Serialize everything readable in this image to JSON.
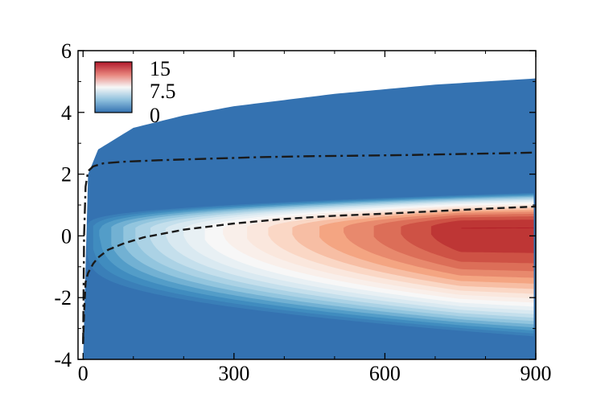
{
  "chart_data": {
    "type": "heatmap",
    "title": "",
    "xlabel": "",
    "ylabel": "",
    "xlim": [
      -10,
      900
    ],
    "ylim": [
      -4,
      6
    ],
    "x_ticks": [
      0,
      300,
      600,
      900
    ],
    "x_tick_labels": [
      "0",
      "300",
      "600",
      "900"
    ],
    "y_ticks": [
      -4,
      -2,
      0,
      2,
      4,
      6
    ],
    "y_tick_labels": [
      "-4",
      "-2",
      "0",
      "2",
      "4",
      "6"
    ],
    "colorbar": {
      "min": 0,
      "max": 15,
      "labels": [
        "15",
        "7.5",
        "0"
      ],
      "colormap": [
        "#ae1a25",
        "#d6604d",
        "#f4a582",
        "#fbe3d6",
        "#f7f7f7",
        "#d1e5f0",
        "#92c5de",
        "#4393c3",
        "#3472b1"
      ]
    },
    "field": {
      "description_values": "contour field over x 0..900, y -4..outer edge",
      "background_value": 0,
      "peak_value": 15,
      "peak_location": [
        750,
        0.2
      ],
      "outer_edge": [
        [
          0,
          -4
        ],
        [
          3,
          0
        ],
        [
          10,
          2
        ],
        [
          30,
          2.8
        ],
        [
          100,
          3.5
        ],
        [
          200,
          3.9
        ],
        [
          300,
          4.2
        ],
        [
          400,
          4.4
        ],
        [
          500,
          4.6
        ],
        [
          600,
          4.75
        ],
        [
          700,
          4.9
        ],
        [
          800,
          5.0
        ],
        [
          900,
          5.1
        ]
      ]
    },
    "series": [
      {
        "name": "dash-dot line",
        "style": "dash-dot",
        "x": [
          0,
          2,
          5,
          10,
          20,
          40,
          80,
          150,
          250,
          350,
          450,
          550,
          650,
          750,
          850,
          900
        ],
        "y": [
          -3.5,
          0,
          1.6,
          2.1,
          2.25,
          2.35,
          2.4,
          2.45,
          2.5,
          2.55,
          2.58,
          2.6,
          2.62,
          2.65,
          2.68,
          2.7
        ]
      },
      {
        "name": "dashed line",
        "style": "dashed",
        "x": [
          0,
          2,
          5,
          10,
          20,
          30,
          50,
          80,
          120,
          200,
          300,
          400,
          500,
          600,
          700,
          800,
          900
        ],
        "y": [
          -3.5,
          -2.5,
          -1.5,
          -1.2,
          -0.9,
          -0.7,
          -0.45,
          -0.25,
          -0.05,
          0.2,
          0.4,
          0.55,
          0.65,
          0.72,
          0.8,
          0.88,
          0.95
        ]
      }
    ]
  }
}
